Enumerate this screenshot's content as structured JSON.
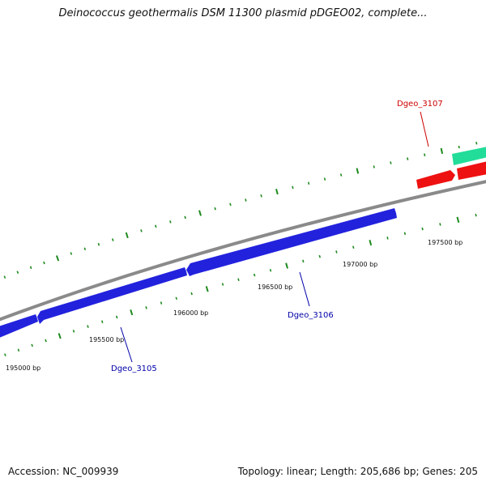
{
  "title": "Deinococcus geothermalis DSM 11300 plasmid pDGEO02, complete...",
  "footer": {
    "accession": "Accession: NC_009939",
    "summary": "Topology: linear; Length: 205,686 bp; Genes: 205"
  },
  "colors": {
    "backbone": "#8a8a8a",
    "tick": "#1e8a1e",
    "gene_reverse": "#2222dd",
    "gene_forward_red": "#ee1111",
    "gene_forward_green": "#22dd99",
    "label_reverse": "#0000aa",
    "label_forward": "#cc0000"
  },
  "positions": [
    {
      "label": "195000 bp"
    },
    {
      "label": "195500 bp"
    },
    {
      "label": "196000 bp"
    },
    {
      "label": "196500 bp"
    },
    {
      "label": "197000 bp"
    },
    {
      "label": "197500 bp"
    }
  ],
  "genes": [
    {
      "name": "Dgeo_3105",
      "strand": "reverse",
      "color": "#2222dd"
    },
    {
      "name": "Dgeo_3106",
      "strand": "reverse",
      "color": "#2222dd"
    },
    {
      "name": "Dgeo_3107",
      "strand": "forward",
      "color": "#ee1111"
    },
    {
      "name": "",
      "strand": "forward",
      "color": "#22dd99"
    }
  ]
}
